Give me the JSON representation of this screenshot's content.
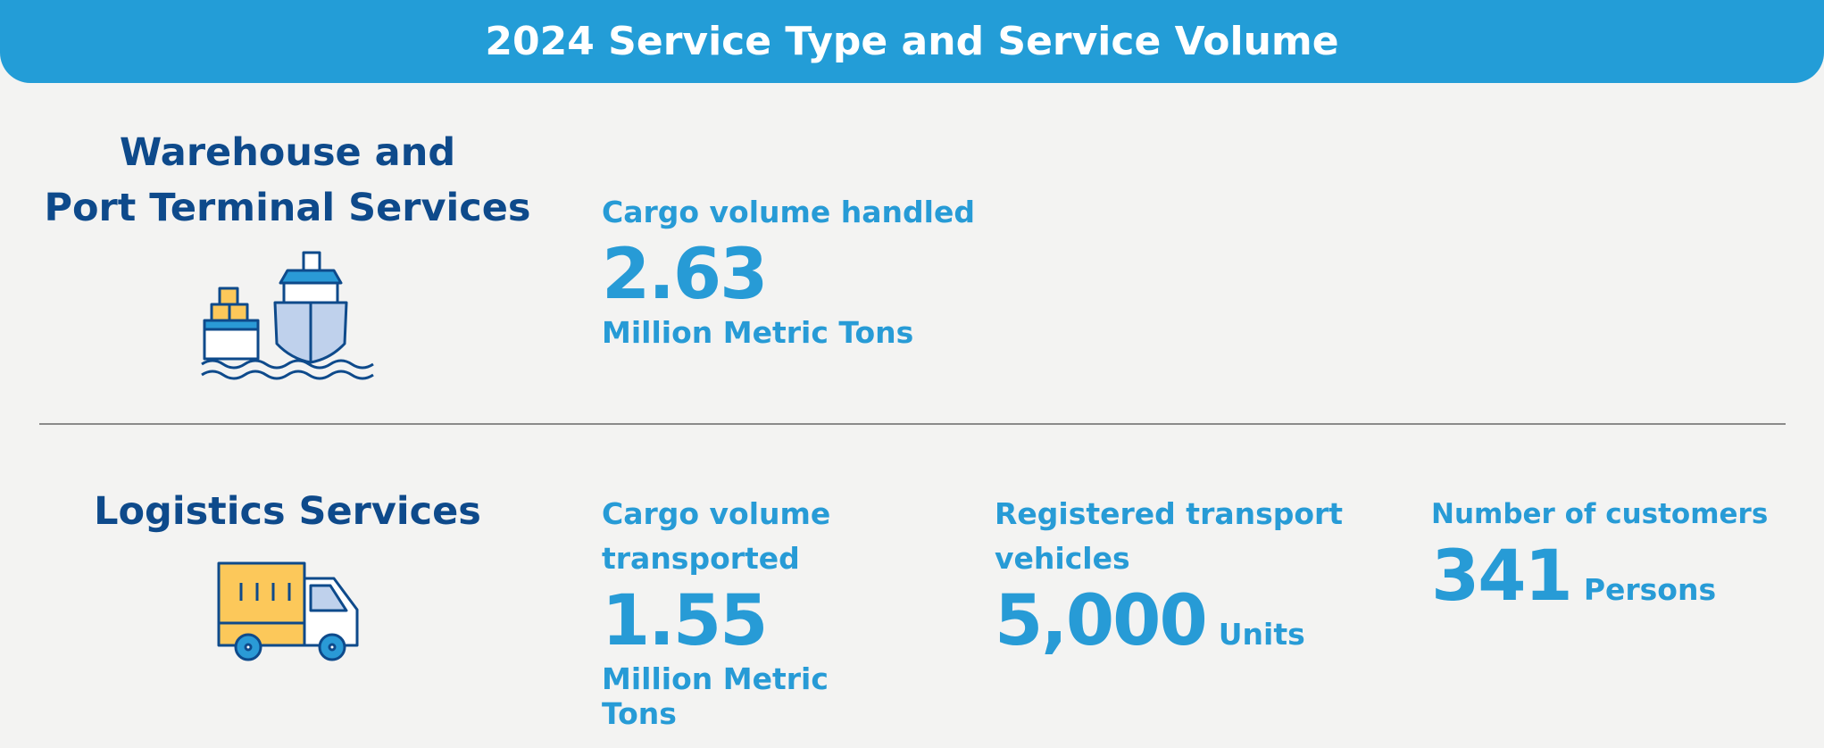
{
  "header": {
    "title": "2024 Service Type and Service Volume"
  },
  "sections": [
    {
      "title_lines": [
        "Warehouse and",
        "Port Terminal Services"
      ],
      "metrics": [
        {
          "label": "Cargo volume handled",
          "value": "2.63",
          "unit": "Million Metric Tons"
        }
      ]
    },
    {
      "title_lines": [
        "Logistics Services"
      ],
      "metrics": [
        {
          "label": "Cargo volume transported",
          "value": "1.55",
          "unit": "Million Metric Tons"
        },
        {
          "label": "Registered transport vehicles",
          "value": "5,000",
          "unit": "Units"
        },
        {
          "label": "Number of customers",
          "value": "341",
          "unit": "Persons"
        }
      ]
    }
  ]
}
